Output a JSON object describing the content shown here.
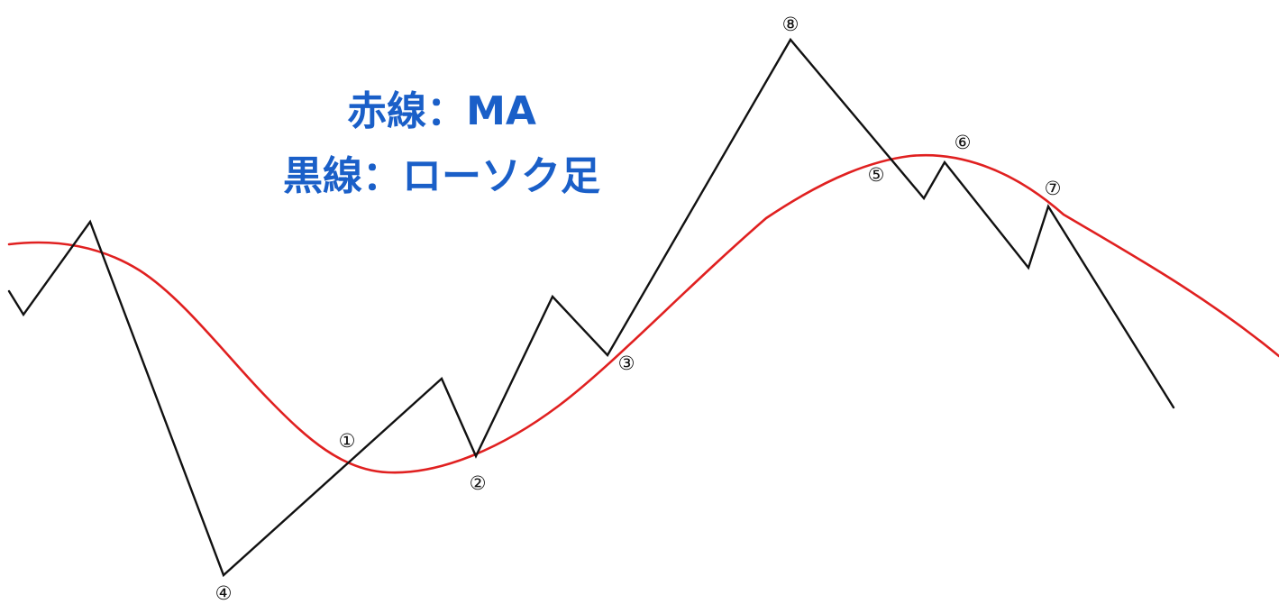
{
  "legend": {
    "red_line_label": "赤線：MA",
    "black_line_label": "黒線：ローソク足",
    "text_color": "#1a5fc8"
  },
  "lines": {
    "ma": {
      "color": "#e02020",
      "label": "MA"
    },
    "candles": {
      "color": "#111111",
      "label": "ローソク足"
    }
  },
  "markers": [
    {
      "id": "m1",
      "label": "①"
    },
    {
      "id": "m2",
      "label": "②"
    },
    {
      "id": "m3",
      "label": "③"
    },
    {
      "id": "m4",
      "label": "④"
    },
    {
      "id": "m5",
      "label": "⑤"
    },
    {
      "id": "m6",
      "label": "⑥"
    },
    {
      "id": "m7",
      "label": "⑦"
    },
    {
      "id": "m8",
      "label": "⑧"
    }
  ]
}
